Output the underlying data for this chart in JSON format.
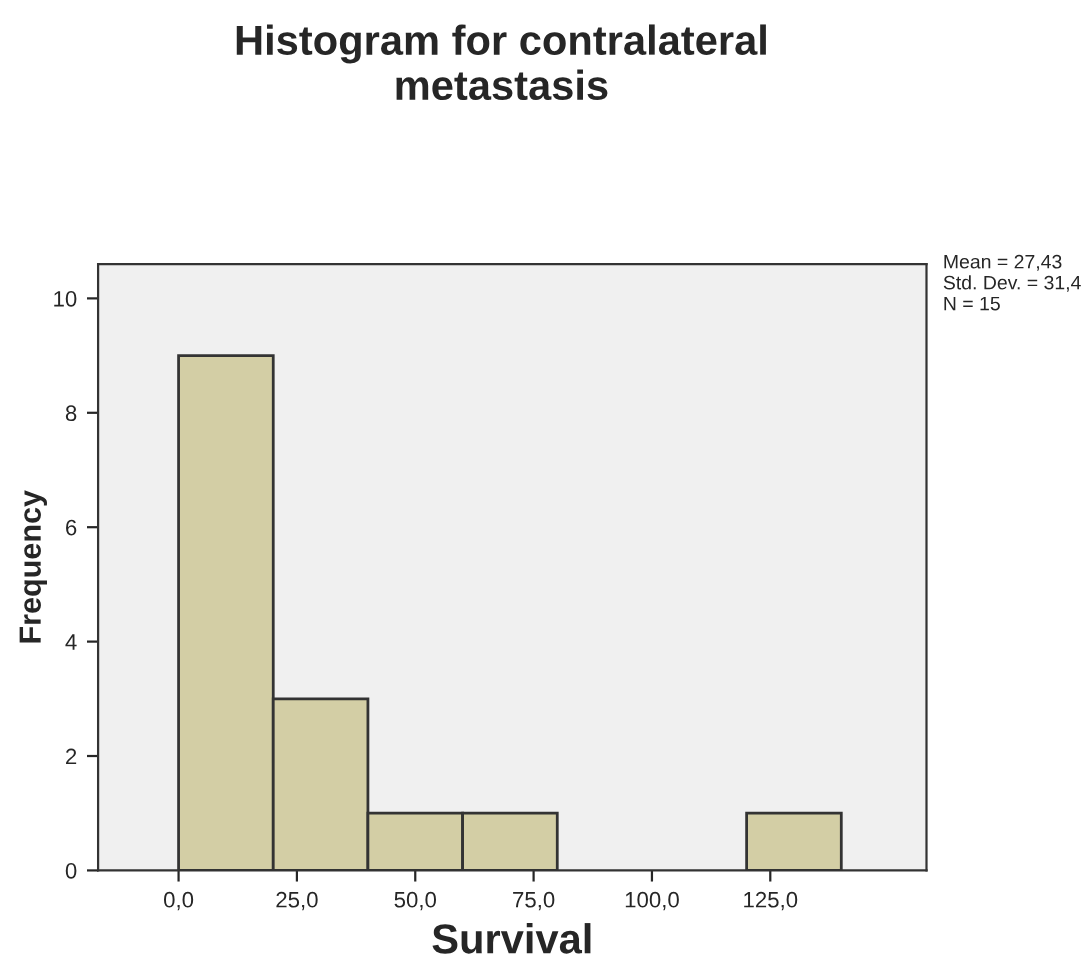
{
  "chart_data": {
    "type": "histogram",
    "title": "Histogram for contralateral\nmetastasis",
    "xlabel": "Survival",
    "ylabel": "Frequency",
    "bins": [
      0,
      20,
      40,
      60,
      80,
      100,
      120,
      140
    ],
    "values": [
      9,
      3,
      1,
      1,
      0,
      0,
      1
    ],
    "color": "#d3cea5",
    "xlim": [
      -17,
      158
    ],
    "ylim": [
      0,
      10.6
    ],
    "xticks": [
      {
        "value": 0,
        "label": "0,0"
      },
      {
        "value": 25,
        "label": "25,0"
      },
      {
        "value": 50,
        "label": "50,0"
      },
      {
        "value": 75,
        "label": "75,0"
      },
      {
        "value": 100,
        "label": "100,0"
      },
      {
        "value": 125,
        "label": "125,0"
      }
    ],
    "yticks": [
      0,
      2,
      4,
      6,
      8,
      10
    ],
    "annotations": [
      "Mean = 27,43\nStd. Dev. = 31,4\nN = 15"
    ],
    "grid": false
  }
}
